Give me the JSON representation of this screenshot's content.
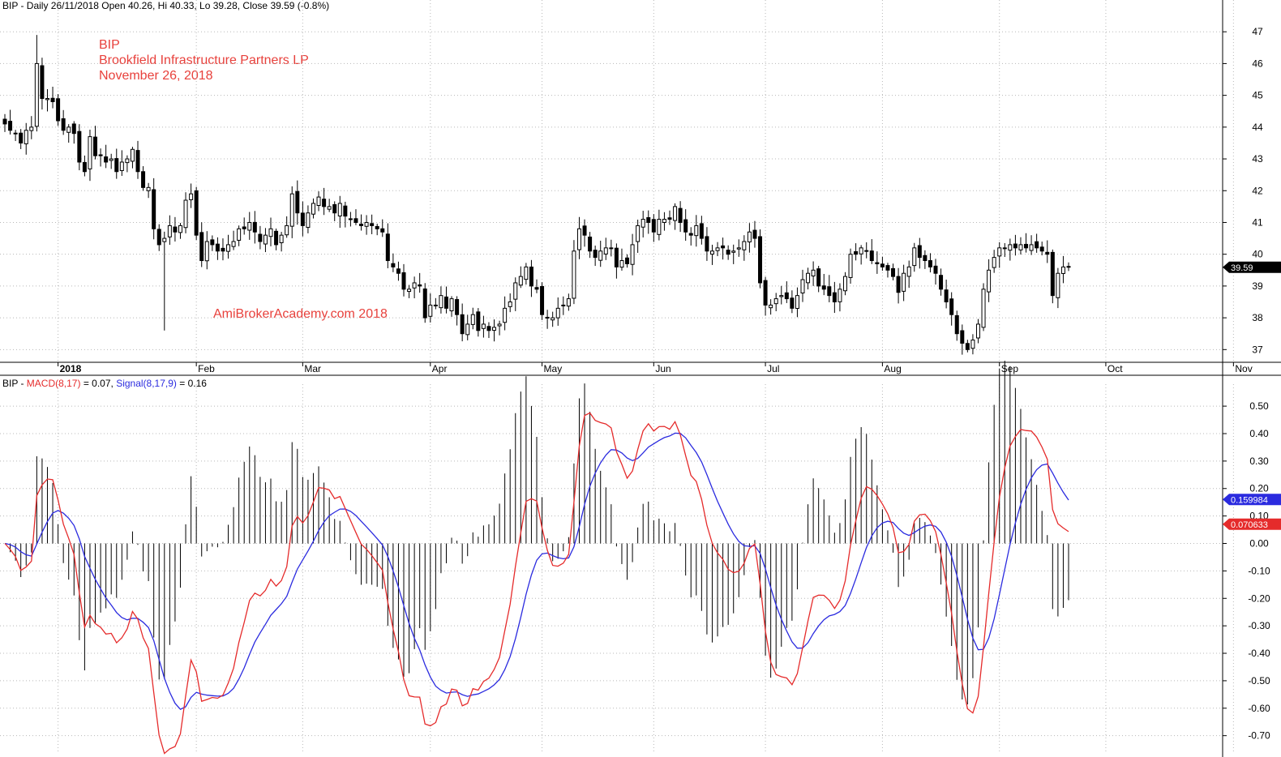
{
  "header": {
    "price_ticker": "BIP",
    "price_info": " - Daily 26/11/2018 Open 40.26, Hi 40.33, Lo 39.28, Close 39.59 (-0.8%)",
    "macd_ticker": "BIP",
    "macd_sep": " - ",
    "macd_label": "MACD(8,17)",
    "macd_value": " = 0.07, ",
    "signal_label": "Signal(8,17,9)",
    "signal_value": " = 0.16"
  },
  "annotation": {
    "symbol": "BIP",
    "company": "Brookfield Infrastructure Partners LP",
    "date": "November 26, 2018",
    "watermark": "AmiBrokerAcademy.com  2018"
  },
  "colors": {
    "macd": "#e52b2b",
    "signal": "#2b2bdf",
    "candle": "#000000",
    "grid": "#b8b8b8",
    "annotation": "#e8413c"
  },
  "chart_data": [
    {
      "type": "candlestick",
      "title": "BIP - Daily 26/11/2018 Open 40.26, Hi 40.33, Lo 39.28, Close 39.59 (-0.8%)",
      "ylim": [
        36.6,
        48.0
      ],
      "y_ticks": [
        37,
        38,
        39,
        40,
        41,
        42,
        43,
        44,
        45,
        46,
        47
      ],
      "x_month_labels": [
        "2018",
        "Feb",
        "Mar",
        "Apr",
        "May",
        "Jun",
        "Jul",
        "Aug",
        "Sep",
        "Oct",
        "Nov"
      ],
      "x_month_label_index": [
        10,
        36,
        56,
        80,
        101,
        122,
        143,
        165,
        187,
        207,
        231
      ],
      "last_close_tag": "39.59",
      "close": [
        44.1,
        43.9,
        43.8,
        43.5,
        43.9,
        44.0,
        46.0,
        44.9,
        44.9,
        44.8,
        44.2,
        43.9,
        44.0,
        43.8,
        42.9,
        42.6,
        43.7,
        43.1,
        43.1,
        42.9,
        43.0,
        42.6,
        42.9,
        43.0,
        43.3,
        42.6,
        42.1,
        42.1,
        40.8,
        40.3,
        40.5,
        40.9,
        40.7,
        40.9,
        41.7,
        41.9,
        40.6,
        39.8,
        40.4,
        40.3,
        40.1,
        40.1,
        40.3,
        40.4,
        40.8,
        40.8,
        41.0,
        40.7,
        40.4,
        40.6,
        40.8,
        40.3,
        40.6,
        40.9,
        41.9,
        41.3,
        40.9,
        41.3,
        41.6,
        41.8,
        41.5,
        41.5,
        41.3,
        41.6,
        41.2,
        41.1,
        41.0,
        40.9,
        41.0,
        40.9,
        40.8,
        40.7,
        39.8,
        39.6,
        39.4,
        38.9,
        38.9,
        39.1,
        39.0,
        38.0,
        38.4,
        38.4,
        38.7,
        38.3,
        38.6,
        38.1,
        37.5,
        37.8,
        38.1,
        37.6,
        37.8,
        37.6,
        37.7,
        37.8,
        38.3,
        38.5,
        39.1,
        39.3,
        39.6,
        39.0,
        38.9,
        38.1,
        38.0,
        38.0,
        38.3,
        38.4,
        38.6,
        40.1,
        40.8,
        40.6,
        40.1,
        39.9,
        40.1,
        40.2,
        40.2,
        39.6,
        39.8,
        39.7,
        40.3,
        40.9,
        41.1,
        41.0,
        40.7,
        41.1,
        41.1,
        41.1,
        41.5,
        41.0,
        40.7,
        40.6,
        40.9,
        40.5,
        40.1,
        40.1,
        40.2,
        40.2,
        40.0,
        40.1,
        40.2,
        40.4,
        40.7,
        40.5,
        39.1,
        38.4,
        38.4,
        38.6,
        38.7,
        38.6,
        38.3,
        38.7,
        39.2,
        39.4,
        39.5,
        39.0,
        38.9,
        38.7,
        38.5,
        38.9,
        39.3,
        40.0,
        40.0,
        40.2,
        40.1,
        39.8,
        39.7,
        39.6,
        39.5,
        39.3,
        38.8,
        39.4,
        39.6,
        40.2,
        39.9,
        39.8,
        39.6,
        39.4,
        38.9,
        38.5,
        38.1,
        37.5,
        37.2,
        37.0,
        37.3,
        37.8,
        38.9,
        39.5,
        39.9,
        40.2,
        40.2,
        40.3,
        40.2,
        40.3,
        40.2,
        40.3,
        40.2,
        40.1,
        40.0,
        38.7,
        39.4,
        39.6,
        39.59
      ]
    },
    {
      "type": "line",
      "title": "BIP - MACD(8,17) = 0.07, Signal(8,17,9) = 0.16",
      "ylim": [
        -0.76,
        0.58
      ],
      "y_ticks": [
        -0.7,
        -0.6,
        -0.5,
        -0.4,
        -0.3,
        -0.2,
        -0.1,
        0.0,
        0.1,
        0.2,
        0.3,
        0.4,
        0.5
      ],
      "y_tick_labels": [
        "-0.70",
        "-0.60",
        "-0.50",
        "-0.40",
        "-0.30",
        "-0.20",
        "-0.10",
        "0.00",
        "0.10",
        "0.20",
        "0.30",
        "0.40",
        "0.50"
      ],
      "legend": [
        "MACD(8,17)",
        "Signal(8,17,9)"
      ],
      "signal_tag": "0.159984",
      "macd_tag": "0.070633",
      "histogram_note": "MACD minus Signal, drawn as vertical bars from zero"
    }
  ]
}
